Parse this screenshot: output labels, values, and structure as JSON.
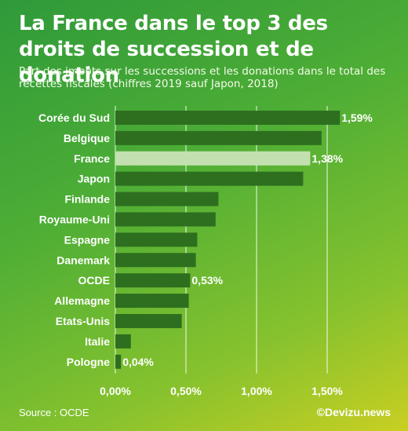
{
  "header": {
    "title": "La France dans le top 3 des droits de succession et de donation",
    "subtitle": "Part des impôts sur les successions et les donations dans le total des recettes fiscales (chiffres 2019 sauf Japon, 2018)"
  },
  "footer": {
    "source": "Source : OCDE",
    "brand": "©Devizu.news"
  },
  "colors": {
    "bar": "#2d6f1f",
    "highlight_bar": "#c3e0b0",
    "gridline": "#ffffff",
    "text": "#ffffff"
  },
  "chart_data": {
    "type": "bar",
    "orientation": "horizontal",
    "categories": [
      "Corée du Sud",
      "Belgique",
      "France",
      "Japon",
      "Finlande",
      "Royaume-Uni",
      "Espagne",
      "Danemark",
      "OCDE",
      "Allemagne",
      "Etats-Unis",
      "Italie",
      "Pologne"
    ],
    "values": [
      1.59,
      1.46,
      1.38,
      1.33,
      0.73,
      0.71,
      0.58,
      0.57,
      0.53,
      0.52,
      0.47,
      0.11,
      0.04
    ],
    "data_labels": [
      "1,59%",
      "",
      "1,38%",
      "",
      "",
      "",
      "",
      "",
      "0,53%",
      "",
      "",
      "",
      "0,04%"
    ],
    "highlight": "France",
    "xlim": [
      0,
      1.6
    ],
    "xticks": [
      0,
      0.5,
      1.0,
      1.5
    ],
    "xtick_labels": [
      "0,00%",
      "0,50%",
      "1,00%",
      "1,50%"
    ],
    "grid": true,
    "xlabel": "",
    "ylabel": ""
  }
}
